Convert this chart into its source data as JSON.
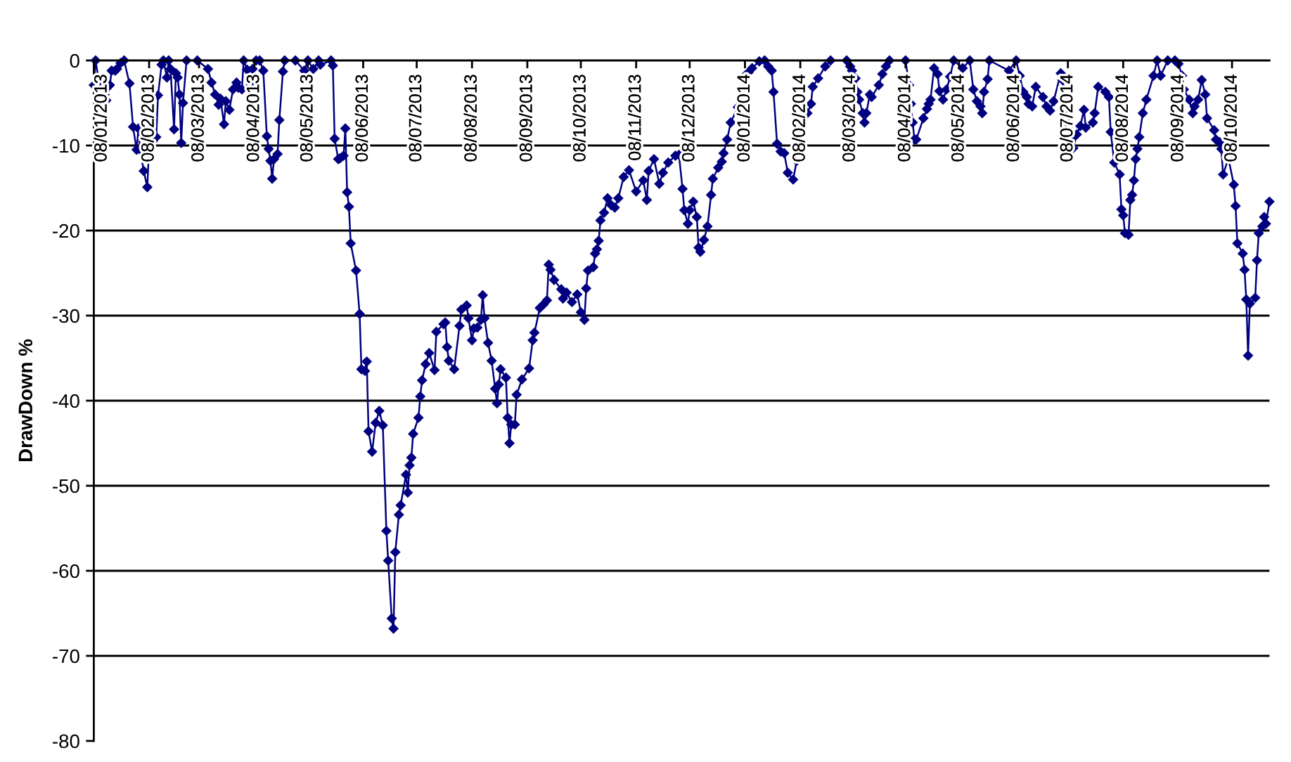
{
  "chart_data": {
    "type": "line",
    "ylabel": "DrawDown %",
    "x": [
      "2013-01-08",
      "2013-01-09",
      "2013-01-11",
      "2013-01-14",
      "2013-01-15",
      "2013-01-17",
      "2013-01-18",
      "2013-01-20",
      "2013-01-21",
      "2013-01-23",
      "2013-01-25",
      "2013-01-28",
      "2013-01-30",
      "2013-02-01",
      "2013-02-02",
      "2013-02-03",
      "2013-02-05",
      "2013-02-07",
      "2013-02-08",
      "2013-02-10",
      "2013-02-12",
      "2013-02-13",
      "2013-02-15",
      "2013-02-16",
      "2013-02-18",
      "2013-02-19",
      "2013-02-20",
      "2013-02-22",
      "2013-02-23",
      "2013-02-24",
      "2013-02-25",
      "2013-02-26",
      "2013-02-27",
      "2013-03-01",
      "2013-03-07",
      "2013-03-13",
      "2013-03-15",
      "2013-03-17",
      "2013-03-19",
      "2013-03-20",
      "2013-03-22",
      "2013-03-23",
      "2013-03-25",
      "2013-03-27",
      "2013-03-29",
      "2013-03-30",
      "2013-04-01",
      "2013-04-02",
      "2013-04-04",
      "2013-04-06",
      "2013-04-07",
      "2013-04-09",
      "2013-04-11",
      "2013-04-13",
      "2013-04-15",
      "2013-04-16",
      "2013-04-17",
      "2013-04-18",
      "2013-04-19",
      "2013-04-21",
      "2013-04-22",
      "2013-04-24",
      "2013-04-25",
      "2013-05-01",
      "2013-05-06",
      "2013-05-08",
      "2013-05-11",
      "2013-05-14",
      "2013-05-15",
      "2013-05-21",
      "2013-05-22",
      "2013-05-23",
      "2013-05-25",
      "2013-05-26",
      "2013-05-28",
      "2013-05-29",
      "2013-05-30",
      "2013-05-31",
      "2013-06-01",
      "2013-06-04",
      "2013-06-06",
      "2013-06-07",
      "2013-06-09",
      "2013-06-10",
      "2013-06-11",
      "2013-06-13",
      "2013-06-15",
      "2013-06-17",
      "2013-06-19",
      "2013-06-21",
      "2013-06-22",
      "2013-06-24",
      "2013-06-25",
      "2013-06-26",
      "2013-06-28",
      "2013-06-29",
      "2013-07-02",
      "2013-07-03",
      "2013-07-04",
      "2013-07-05",
      "2013-07-06",
      "2013-07-09",
      "2013-07-10",
      "2013-07-11",
      "2013-07-13",
      "2013-07-15",
      "2013-07-18",
      "2013-07-19",
      "2013-07-23",
      "2013-07-24",
      "2013-07-25",
      "2013-07-26",
      "2013-07-29",
      "2013-08-01",
      "2013-08-02",
      "2013-08-05",
      "2013-08-06",
      "2013-08-08",
      "2013-08-09",
      "2013-08-11",
      "2013-08-13",
      "2013-08-14",
      "2013-08-15",
      "2013-08-17",
      "2013-08-19",
      "2013-08-21",
      "2013-08-22",
      "2013-08-23",
      "2013-08-24",
      "2013-08-27",
      "2013-08-28",
      "2013-08-29",
      "2013-08-30",
      "2013-09-01",
      "2013-09-02",
      "2013-09-05",
      "2013-09-09",
      "2013-09-11",
      "2013-09-12",
      "2013-09-15",
      "2013-09-17",
      "2013-09-19",
      "2013-09-20",
      "2013-09-21",
      "2013-09-23",
      "2013-09-27",
      "2013-09-28",
      "2013-09-30",
      "2013-10-03",
      "2013-10-06",
      "2013-10-08",
      "2013-10-10",
      "2013-10-11",
      "2013-10-12",
      "2013-10-15",
      "2013-10-16",
      "2013-10-17",
      "2013-10-18",
      "2013-10-19",
      "2013-10-21",
      "2013-10-23",
      "2013-10-25",
      "2013-10-27",
      "2013-10-29",
      "2013-11-01",
      "2013-11-04",
      "2013-11-08",
      "2013-11-12",
      "2013-11-14",
      "2013-11-15",
      "2013-11-18",
      "2013-11-21",
      "2013-11-23",
      "2013-11-26",
      "2013-11-30",
      "2013-12-02",
      "2013-12-04",
      "2013-12-05",
      "2013-12-07",
      "2013-12-08",
      "2013-12-10",
      "2013-12-12",
      "2013-12-13",
      "2013-12-14",
      "2013-12-16",
      "2013-12-18",
      "2013-12-20",
      "2013-12-21",
      "2013-12-24",
      "2013-12-26",
      "2013-12-27",
      "2013-12-29",
      "2013-12-31",
      "2014-01-04",
      "2014-01-06",
      "2014-01-08",
      "2014-01-10",
      "2014-01-12",
      "2014-01-16",
      "2014-01-19",
      "2014-01-21",
      "2014-01-23",
      "2014-01-24",
      "2014-01-26",
      "2014-01-28",
      "2014-01-30",
      "2014-02-01",
      "2014-02-04",
      "2014-02-06",
      "2014-02-07",
      "2014-02-12",
      "2014-02-14",
      "2014-02-15",
      "2014-02-18",
      "2014-02-22",
      "2014-02-25",
      "2014-03-06",
      "2014-03-08",
      "2014-03-09",
      "2014-03-11",
      "2014-03-12",
      "2014-03-13",
      "2014-03-15",
      "2014-03-16",
      "2014-03-17",
      "2014-03-19",
      "2014-03-20",
      "2014-03-24",
      "2014-03-26",
      "2014-03-28",
      "2014-03-30",
      "2014-04-08",
      "2014-04-10",
      "2014-04-11",
      "2014-04-12",
      "2014-04-13",
      "2014-04-14",
      "2014-04-18",
      "2014-04-20",
      "2014-04-21",
      "2014-04-22",
      "2014-04-24",
      "2014-04-26",
      "2014-04-27",
      "2014-04-29",
      "2014-05-01",
      "2014-05-03",
      "2014-05-05",
      "2014-05-10",
      "2014-05-14",
      "2014-05-16",
      "2014-05-18",
      "2014-05-20",
      "2014-05-21",
      "2014-05-22",
      "2014-05-24",
      "2014-05-25",
      "2014-06-05",
      "2014-06-09",
      "2014-06-11",
      "2014-06-13",
      "2014-06-15",
      "2014-06-16",
      "2014-06-18",
      "2014-06-20",
      "2014-06-24",
      "2014-06-26",
      "2014-06-28",
      "2014-06-30",
      "2014-07-04",
      "2014-07-05",
      "2014-07-07",
      "2014-07-08",
      "2014-07-09",
      "2014-07-10",
      "2014-07-11",
      "2014-07-13",
      "2014-07-15",
      "2014-07-17",
      "2014-07-18",
      "2014-07-22",
      "2014-07-23",
      "2014-07-25",
      "2014-07-29",
      "2014-07-31",
      "2014-08-01",
      "2014-08-03",
      "2014-08-06",
      "2014-08-07",
      "2014-08-08",
      "2014-08-09",
      "2014-08-11",
      "2014-08-12",
      "2014-08-13",
      "2014-08-14",
      "2014-08-15",
      "2014-08-16",
      "2014-08-17",
      "2014-08-19",
      "2014-08-21",
      "2014-08-25",
      "2014-08-27",
      "2014-08-29",
      "2014-09-02",
      "2014-09-06",
      "2014-09-08",
      "2014-09-10",
      "2014-09-11",
      "2014-09-14",
      "2014-09-16",
      "2014-09-17",
      "2014-09-19",
      "2014-09-21",
      "2014-09-23",
      "2014-09-24",
      "2014-09-28",
      "2014-09-29",
      "2014-10-01",
      "2014-10-02",
      "2014-10-03",
      "2014-10-06",
      "2014-10-09",
      "2014-10-10",
      "2014-10-11",
      "2014-10-14",
      "2014-10-15",
      "2014-10-16",
      "2014-10-17",
      "2014-10-18",
      "2014-10-21",
      "2014-10-22",
      "2014-10-23",
      "2014-10-25",
      "2014-10-26",
      "2014-10-27",
      "2014-10-29"
    ],
    "series": [
      {
        "color": "#000080",
        "values": [
          -2.9,
          0,
          -2.7,
          -4,
          -4.7,
          -2.9,
          -1.2,
          -1.2,
          -1,
          -0.3,
          0,
          -2.7,
          -7.8,
          -10.5,
          -8,
          -10.5,
          -13,
          -14.9,
          -10,
          -9.5,
          -9,
          -4.1,
          -0.5,
          0,
          -2,
          0,
          -1,
          -8.1,
          -1.5,
          -2,
          -4,
          -9.7,
          -5,
          0,
          0,
          -1,
          -2.6,
          -4,
          -5.2,
          -4.5,
          -7.5,
          -4.8,
          -5.8,
          -3.4,
          -2.6,
          -3.2,
          -3.4,
          0,
          -1.1,
          -2.9,
          -1,
          0,
          0,
          -1.2,
          -8.9,
          -10.4,
          -11.8,
          -13.9,
          -11.6,
          -11,
          -7,
          -1.3,
          0,
          0,
          -1.2,
          0,
          -1,
          0,
          -0.5,
          0,
          -0.6,
          -9.2,
          -11.6,
          -11.5,
          -11.2,
          -8,
          -15.5,
          -17.2,
          -21.5,
          -24.7,
          -29.8,
          -36.3,
          -36.5,
          -35.4,
          -43.6,
          -46,
          -42.6,
          -41.2,
          -42.9,
          -55.3,
          -58.8,
          -65.6,
          -66.8,
          -57.8,
          -53.4,
          -52.3,
          -48.7,
          -50.8,
          -47.6,
          -46.7,
          -43.9,
          -42,
          -39.5,
          -37.6,
          -35.7,
          -34.4,
          -36.4,
          -31.9,
          -31,
          -30.8,
          -33.7,
          -35.3,
          -36.3,
          -31.2,
          -29.3,
          -28.8,
          -30.3,
          -32.9,
          -31.5,
          -31.4,
          -30.5,
          -27.6,
          -30.3,
          -33.2,
          -35.3,
          -38.6,
          -40.3,
          -38.1,
          -36.3,
          -37.3,
          -42,
          -45,
          -42.8,
          -42.8,
          -39.3,
          -37.5,
          -36.2,
          -32.9,
          -32,
          -29.1,
          -28.7,
          -28.2,
          -24,
          -24.6,
          -25.8,
          -26.9,
          -28,
          -27.3,
          -28.4,
          -27.5,
          -29.6,
          -30.5,
          -26.8,
          -24.7,
          -24.3,
          -22.7,
          -22.2,
          -21.2,
          -18.8,
          -17.9,
          -16.2,
          -17,
          -17.3,
          -16.2,
          -13.7,
          -12.9,
          -15.4,
          -14.1,
          -16.4,
          -13,
          -11.6,
          -14.5,
          -13.2,
          -12,
          -11.2,
          -11.1,
          -15.1,
          -17.6,
          -19.2,
          -17.6,
          -16.6,
          -18.4,
          -22,
          -22.5,
          -21.1,
          -19.5,
          -15.8,
          -13.9,
          -12.6,
          -11.9,
          -10.9,
          -9.3,
          -7.3,
          -5.5,
          -5.2,
          -1.8,
          -1.4,
          -0.9,
          -0.1,
          0,
          -0.7,
          -1.2,
          -3.7,
          -9.8,
          -10.7,
          -10.9,
          -13.2,
          -14,
          -11.8,
          -8.7,
          -6.2,
          -5.1,
          -3.1,
          -2.1,
          -0.7,
          0,
          0,
          -0.7,
          -1.2,
          -2.1,
          -3.7,
          -4.6,
          -6.2,
          -7.3,
          -6.2,
          -4,
          -4.3,
          -2.9,
          -1.6,
          -0.7,
          0,
          0,
          -2.9,
          -5.1,
          -7.3,
          -9.3,
          -9.3,
          -6.8,
          -5.7,
          -5.1,
          -4.6,
          -0.9,
          -1.6,
          -3.6,
          -4.6,
          -3.4,
          -1.9,
          0,
          -0.9,
          0,
          -3.4,
          -4.8,
          -5.4,
          -6.2,
          -3.7,
          -2.2,
          0,
          -1.2,
          0,
          -1.8,
          -3.7,
          -4.3,
          -5.1,
          -5.4,
          -3.1,
          -4.3,
          -5.4,
          -5.9,
          -4.8,
          -1.5,
          -2.3,
          -4.7,
          -5.9,
          -7.6,
          -9.3,
          -10.3,
          -8.7,
          -7.7,
          -5.8,
          -7.9,
          -7.3,
          -6.2,
          -3.1,
          -3.7,
          -4.3,
          -8.4,
          -12,
          -13.4,
          -17.5,
          -18.2,
          -20.3,
          -20.5,
          -16.4,
          -15.8,
          -14.1,
          -11.6,
          -10.4,
          -9,
          -6.2,
          -4.6,
          -1.8,
          0,
          -1.8,
          0,
          0,
          -0.4,
          -1.8,
          -3.4,
          -4.6,
          -6.2,
          -5.4,
          -4.6,
          -2.3,
          -4,
          -6.8,
          -8.2,
          -9.3,
          -9.6,
          -10.4,
          -13.4,
          -11.5,
          -14.6,
          -17.1,
          -21.5,
          -22.7,
          -24.6,
          -28.1,
          -34.7,
          -28.6,
          -27.9,
          -23.5,
          -20.3,
          -19.5,
          -18.4,
          -19.2,
          -16.6
        ]
      }
    ],
    "xlim": [
      "2013-01-08",
      "2014-10-29"
    ],
    "xticks": [
      {
        "value": "2013-01-08",
        "label": "08/01/2013"
      },
      {
        "value": "2013-02-08",
        "label": "08/02/2013"
      },
      {
        "value": "2013-03-08",
        "label": "08/03/2013"
      },
      {
        "value": "2013-04-08",
        "label": "08/04/2013"
      },
      {
        "value": "2013-05-08",
        "label": "08/05/2013"
      },
      {
        "value": "2013-06-08",
        "label": "08/06/2013"
      },
      {
        "value": "2013-07-08",
        "label": "08/07/2013"
      },
      {
        "value": "2013-08-08",
        "label": "08/08/2013"
      },
      {
        "value": "2013-09-08",
        "label": "08/09/2013"
      },
      {
        "value": "2013-10-08",
        "label": "08/10/2013"
      },
      {
        "value": "2013-11-08",
        "label": "08/11/2013"
      },
      {
        "value": "2013-12-08",
        "label": "08/12/2013"
      },
      {
        "value": "2014-01-08",
        "label": "08/01/2014"
      },
      {
        "value": "2014-02-08",
        "label": "08/02/2014"
      },
      {
        "value": "2014-03-08",
        "label": "08/03/2014"
      },
      {
        "value": "2014-04-08",
        "label": "08/04/2014"
      },
      {
        "value": "2014-05-08",
        "label": "08/05/2014"
      },
      {
        "value": "2014-06-08",
        "label": "08/06/2014"
      },
      {
        "value": "2014-07-08",
        "label": "08/07/2014"
      },
      {
        "value": "2014-08-08",
        "label": "08/08/2014"
      },
      {
        "value": "2014-09-08",
        "label": "08/09/2014"
      },
      {
        "value": "2014-10-08",
        "label": "08/10/2014"
      }
    ],
    "ylim": [
      -80,
      0
    ],
    "yticks": [
      -80,
      -70,
      -60,
      -50,
      -40,
      -30,
      -20,
      -10,
      0
    ],
    "grid": "y",
    "marker": "diamond",
    "line_style": "solid"
  }
}
